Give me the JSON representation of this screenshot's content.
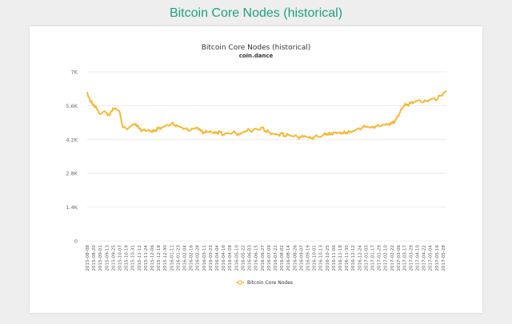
{
  "page": {
    "title": "Bitcoin Core Nodes (historical)"
  },
  "colors": {
    "accent": "#20a07f",
    "series": "#f3b93a",
    "grid": "#e6e6e6"
  },
  "chart_data": {
    "type": "line",
    "title": "Bitcoin Core Nodes (historical)",
    "subtitle": "coin.dance",
    "xlabel": "",
    "ylabel": "",
    "ylim": [
      0,
      7000
    ],
    "y_ticks": [
      0,
      1400,
      2800,
      4200,
      5600,
      7000
    ],
    "y_tick_labels": [
      "0",
      "1.4K",
      "2.8K",
      "4.2K",
      "5.6K",
      "7K"
    ],
    "grid": true,
    "legend_position": "bottom-center",
    "x_tick_labels": [
      "2015-08-08",
      "2015-08-20",
      "2015-09-01",
      "2015-09-13",
      "2015-09-25",
      "2015-10-07",
      "2015-10-19",
      "2015-10-31",
      "2015-11-12",
      "2015-11-24",
      "2015-12-06",
      "2015-12-18",
      "2015-12-30",
      "2016-01-11",
      "2016-01-23",
      "2016-02-04",
      "2016-02-16",
      "2016-02-28",
      "2016-03-11",
      "2016-03-23",
      "2016-04-04",
      "2016-04-16",
      "2016-04-28",
      "2016-05-10",
      "2016-05-22",
      "2016-06-03",
      "2016-06-15",
      "2016-06-27",
      "2016-07-09",
      "2016-07-21",
      "2016-08-02",
      "2016-08-14",
      "2016-08-26",
      "2016-09-07",
      "2016-09-19",
      "2016-10-01",
      "2016-10-13",
      "2016-10-25",
      "2016-11-06",
      "2016-11-18",
      "2016-11-30",
      "2016-12-12",
      "2016-12-24",
      "2017-01-05",
      "2017-01-17",
      "2017-01-29",
      "2017-02-10",
      "2017-02-22",
      "2017-03-06",
      "2017-03-17",
      "2017-03-29",
      "2017-04-10",
      "2017-04-22",
      "2017-05-04",
      "2017-05-16",
      "2017-05-28"
    ],
    "series": [
      {
        "name": "Bitcoin Core Nodes",
        "x": [
          "2015-08-08",
          "2015-08-14",
          "2015-08-20",
          "2015-08-26",
          "2015-09-01",
          "2015-09-07",
          "2015-09-13",
          "2015-09-19",
          "2015-09-25",
          "2015-10-01",
          "2015-10-07",
          "2015-10-13",
          "2015-10-19",
          "2015-10-25",
          "2015-10-31",
          "2015-11-06",
          "2015-11-12",
          "2015-11-18",
          "2015-11-24",
          "2015-11-30",
          "2015-12-06",
          "2015-12-12",
          "2015-12-18",
          "2015-12-24",
          "2015-12-30",
          "2016-01-05",
          "2016-01-11",
          "2016-01-17",
          "2016-01-23",
          "2016-01-29",
          "2016-02-04",
          "2016-02-10",
          "2016-02-16",
          "2016-02-22",
          "2016-02-28",
          "2016-03-05",
          "2016-03-11",
          "2016-03-17",
          "2016-03-23",
          "2016-03-29",
          "2016-04-04",
          "2016-04-10",
          "2016-04-16",
          "2016-04-22",
          "2016-04-28",
          "2016-05-04",
          "2016-05-10",
          "2016-05-16",
          "2016-05-22",
          "2016-05-28",
          "2016-06-03",
          "2016-06-09",
          "2016-06-15",
          "2016-06-21",
          "2016-06-27",
          "2016-07-03",
          "2016-07-09",
          "2016-07-15",
          "2016-07-21",
          "2016-07-27",
          "2016-08-02",
          "2016-08-08",
          "2016-08-14",
          "2016-08-20",
          "2016-08-26",
          "2016-09-01",
          "2016-09-07",
          "2016-09-13",
          "2016-09-19",
          "2016-09-25",
          "2016-10-01",
          "2016-10-07",
          "2016-10-13",
          "2016-10-19",
          "2016-10-25",
          "2016-10-31",
          "2016-11-06",
          "2016-11-12",
          "2016-11-18",
          "2016-11-24",
          "2016-11-30",
          "2016-12-06",
          "2016-12-12",
          "2016-12-18",
          "2016-12-24",
          "2016-12-30",
          "2017-01-05",
          "2017-01-11",
          "2017-01-17",
          "2017-01-23",
          "2017-01-29",
          "2017-02-04",
          "2017-02-10",
          "2017-02-16",
          "2017-02-22",
          "2017-02-28",
          "2017-03-06",
          "2017-03-11",
          "2017-03-17",
          "2017-03-23",
          "2017-03-29",
          "2017-04-04",
          "2017-04-10",
          "2017-04-16",
          "2017-04-22",
          "2017-04-28",
          "2017-05-04",
          "2017-05-10",
          "2017-05-16",
          "2017-05-22",
          "2017-05-28",
          "2017-06-03"
        ],
        "values": [
          6150,
          5750,
          5650,
          5450,
          5250,
          5350,
          5300,
          5200,
          5500,
          5450,
          5350,
          4700,
          4650,
          4700,
          4800,
          4850,
          4650,
          4600,
          4550,
          4600,
          4500,
          4600,
          4650,
          4700,
          4750,
          4800,
          4850,
          4800,
          4750,
          4700,
          4650,
          4600,
          4600,
          4650,
          4700,
          4550,
          4500,
          4500,
          4550,
          4450,
          4500,
          4500,
          4400,
          4450,
          4450,
          4500,
          4450,
          4400,
          4500,
          4550,
          4600,
          4550,
          4650,
          4600,
          4700,
          4550,
          4500,
          4450,
          4400,
          4400,
          4450,
          4350,
          4400,
          4350,
          4350,
          4300,
          4300,
          4350,
          4300,
          4250,
          4300,
          4350,
          4300,
          4400,
          4450,
          4400,
          4500,
          4450,
          4500,
          4450,
          4500,
          4500,
          4550,
          4600,
          4650,
          4700,
          4750,
          4700,
          4700,
          4750,
          4750,
          4800,
          4800,
          4850,
          4850,
          5000,
          5150,
          5450,
          5600,
          5650,
          5700,
          5750,
          5800,
          5800,
          5750,
          5800,
          5850,
          5900,
          5850,
          6000,
          6100,
          6200
        ]
      }
    ]
  }
}
